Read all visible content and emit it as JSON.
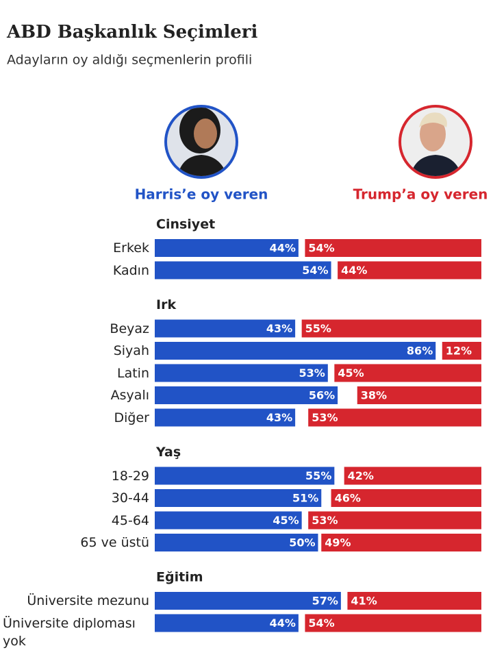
{
  "chart_data": {
    "type": "bar",
    "title": "ABD Başkanlık Seçimleri",
    "subtitle": "Adayların oy aldığı seçmenlerin profili",
    "xlim": [
      0,
      100
    ],
    "series": [
      {
        "name": "Harris’e oy veren",
        "color": "#2153c6"
      },
      {
        "name": "Trump’a oy veren",
        "color": "#d6262e"
      }
    ],
    "groups": [
      {
        "title": "Cinsiyet",
        "categories": [
          "Erkek",
          "Kadın"
        ],
        "series": [
          {
            "values": [
              44,
              54
            ],
            "value_labels": [
              "44%",
              "54%"
            ]
          },
          {
            "values": [
              54,
              44
            ],
            "value_labels": [
              "54%",
              "44%"
            ]
          }
        ]
      },
      {
        "title": "Irk",
        "categories": [
          "Beyaz",
          "Siyah",
          "Latin",
          "Asyalı",
          "Diğer"
        ],
        "series": [
          {
            "values": [
              43,
              86,
              53,
              56,
              43
            ],
            "value_labels": [
              "43%",
              "86%",
              "53%",
              "56%",
              "43%"
            ]
          },
          {
            "values": [
              55,
              12,
              45,
              38,
              53
            ],
            "value_labels": [
              "55%",
              "12%",
              "45%",
              "38%",
              "53%"
            ]
          }
        ]
      },
      {
        "title": "Yaş",
        "categories": [
          "18-29",
          "30-44",
          "45-64",
          "65 ve üstü"
        ],
        "series": [
          {
            "values": [
              55,
              51,
              45,
              50
            ],
            "value_labels": [
              "55%",
              "51%",
              "45%",
              "50%"
            ]
          },
          {
            "values": [
              42,
              46,
              53,
              49
            ],
            "value_labels": [
              "42%",
              "46%",
              "53%",
              "49%"
            ]
          }
        ]
      },
      {
        "title": "Eğitim",
        "categories": [
          "Üniversite mezunu",
          "Üniversite diploması yok"
        ],
        "series": [
          {
            "values": [
              57,
              44
            ],
            "value_labels": [
              "57%",
              "44%"
            ]
          },
          {
            "values": [
              41,
              54
            ],
            "value_labels": [
              "41%",
              "54%"
            ]
          }
        ]
      }
    ]
  }
}
